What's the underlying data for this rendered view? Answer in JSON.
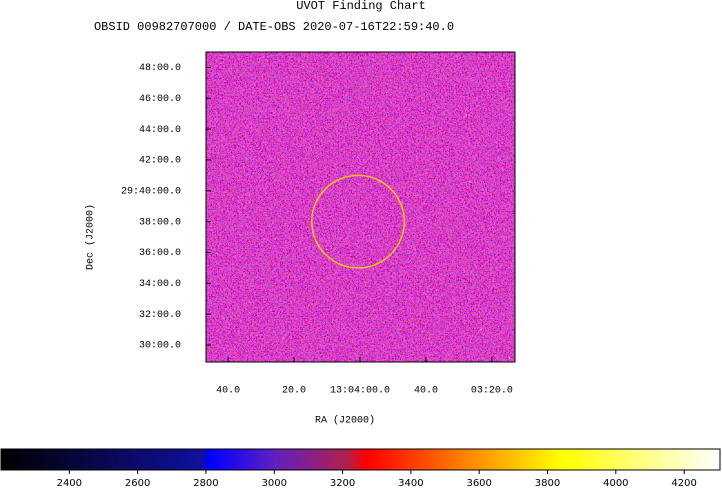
{
  "chart_data": {
    "type": "image",
    "title": "UVOT Finding Chart",
    "subtitle": "OBSID 00982707000 / DATE-OBS 2020-07-16T22:59:40.0",
    "xlabel": "RA (J2000)",
    "ylabel": "Dec (J2000)",
    "xlim": [
      106.7,
      13
    ],
    "xticks": [
      {
        "value": 100,
        "label": "40.0"
      },
      {
        "value": 80,
        "label": "20.0"
      },
      {
        "value": 60,
        "label": "13:04:00.0"
      },
      {
        "value": 40,
        "label": "40.0"
      },
      {
        "value": 20,
        "label": "03:20.0"
      }
    ],
    "ylim": [
      28.9,
      49
    ],
    "yticks": [
      {
        "value": 48,
        "label": "48:00.0"
      },
      {
        "value": 46,
        "label": "46:00.0"
      },
      {
        "value": 44,
        "label": "44:00.0"
      },
      {
        "value": 42,
        "label": "42:00.0"
      },
      {
        "value": 40,
        "label": "29:40:00.0"
      },
      {
        "value": 38,
        "label": "38:00.0"
      },
      {
        "value": 36,
        "label": "36:00.0"
      },
      {
        "value": 34,
        "label": "34:00.0"
      },
      {
        "value": 32,
        "label": "32:00.0"
      },
      {
        "value": 30,
        "label": "30:00.0"
      }
    ],
    "circle": {
      "x": 60.6,
      "y": 38,
      "radius": 3,
      "color": "#f0c020"
    },
    "colorbar": {
      "lim": [
        2200,
        4305
      ],
      "ticks": [
        2400,
        2600,
        2800,
        3000,
        3200,
        3400,
        3600,
        3800,
        4000,
        4200
      ]
    }
  }
}
